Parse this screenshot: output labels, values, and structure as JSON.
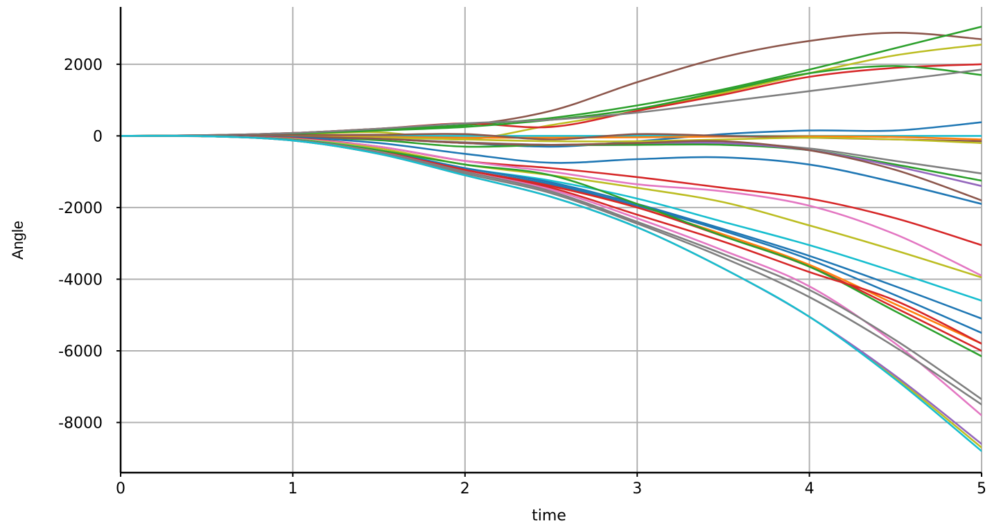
{
  "chart_data": {
    "type": "line",
    "title": "",
    "xlabel": "time",
    "ylabel": "Angle",
    "xlim": [
      0,
      5
    ],
    "ylim": [
      -9400,
      3600
    ],
    "xticks": [
      0,
      1,
      2,
      3,
      4,
      5
    ],
    "yticks": [
      -8000,
      -6000,
      -4000,
      -2000,
      0,
      2000
    ],
    "xtick_labels": [
      "0",
      "1",
      "2",
      "3",
      "4",
      "5"
    ],
    "ytick_labels": [
      "-8000",
      "-6000",
      "-4000",
      "-2000",
      "0",
      "2000"
    ],
    "grid": true,
    "legend": "none",
    "x": [
      0,
      0.5,
      1,
      1.5,
      2,
      2.5,
      3,
      3.5,
      4,
      4.5,
      5
    ],
    "series": [
      {
        "color": "#8c564b",
        "values": [
          0,
          20,
          80,
          200,
          300,
          700,
          1500,
          2200,
          2650,
          2880,
          2700
        ]
      },
      {
        "color": "#2ca02c",
        "values": [
          0,
          15,
          70,
          180,
          300,
          500,
          850,
          1300,
          1850,
          2450,
          3050
        ]
      },
      {
        "color": "#bcbd22",
        "values": [
          0,
          10,
          40,
          100,
          -100,
          300,
          700,
          1200,
          1750,
          2250,
          2550
        ]
      },
      {
        "color": "#d62728",
        "values": [
          0,
          20,
          80,
          200,
          350,
          250,
          700,
          1150,
          1650,
          1900,
          2000
        ]
      },
      {
        "color": "#2ca02c",
        "values": [
          0,
          15,
          60,
          150,
          250,
          450,
          750,
          1250,
          1750,
          1950,
          1700
        ]
      },
      {
        "color": "#7f7f7f",
        "values": [
          0,
          20,
          80,
          200,
          350,
          450,
          650,
          950,
          1250,
          1550,
          1850
        ]
      },
      {
        "color": "#1f77b4",
        "values": [
          0,
          0,
          -20,
          -80,
          -200,
          -300,
          -150,
          50,
          150,
          150,
          380
        ]
      },
      {
        "color": "#17becf",
        "values": [
          0,
          0,
          0,
          0,
          0,
          0,
          0,
          0,
          0,
          0,
          0
        ]
      },
      {
        "color": "#ff7f0e",
        "values": [
          0,
          0,
          -10,
          -30,
          -50,
          -50,
          -40,
          -20,
          -10,
          -30,
          -100
        ]
      },
      {
        "color": "#8c564b",
        "values": [
          0,
          5,
          20,
          30,
          50,
          -100,
          50,
          0,
          -50,
          -100,
          -150
        ]
      },
      {
        "color": "#bcbd22",
        "values": [
          0,
          0,
          -20,
          -50,
          -100,
          -150,
          -150,
          -100,
          -50,
          -100,
          -200
        ]
      },
      {
        "color": "#7f7f7f",
        "values": [
          0,
          -5,
          -30,
          -80,
          -180,
          -250,
          -250,
          -200,
          -350,
          -700,
          -1050
        ]
      },
      {
        "color": "#2ca02c",
        "values": [
          0,
          -5,
          -30,
          -120,
          -300,
          -250,
          -250,
          -250,
          -400,
          -800,
          -1250
        ]
      },
      {
        "color": "#9467bd",
        "values": [
          0,
          -5,
          -30,
          -80,
          -200,
          -250,
          -200,
          -200,
          -400,
          -850,
          -1400
        ]
      },
      {
        "color": "#8c564b",
        "values": [
          0,
          -5,
          -30,
          -80,
          -200,
          -250,
          -200,
          -150,
          -400,
          -950,
          -1800
        ]
      },
      {
        "color": "#1f77b4",
        "values": [
          0,
          -5,
          -40,
          -200,
          -500,
          -750,
          -650,
          -600,
          -800,
          -1300,
          -1900
        ]
      },
      {
        "color": "#d62728",
        "values": [
          0,
          -10,
          -60,
          -300,
          -700,
          -900,
          -1150,
          -1450,
          -1750,
          -2300,
          -3050
        ]
      },
      {
        "color": "#e377c2",
        "values": [
          0,
          -10,
          -80,
          -300,
          -700,
          -1000,
          -1350,
          -1550,
          -1950,
          -2750,
          -3900
        ]
      },
      {
        "color": "#bcbd22",
        "values": [
          0,
          -10,
          -90,
          -350,
          -800,
          -1100,
          -1450,
          -1850,
          -2500,
          -3200,
          -3950
        ]
      },
      {
        "color": "#17becf",
        "values": [
          0,
          -10,
          -100,
          -400,
          -900,
          -1250,
          -1750,
          -2400,
          -3050,
          -3800,
          -4600
        ]
      },
      {
        "color": "#1f77b4",
        "values": [
          0,
          -10,
          -110,
          -420,
          -900,
          -1300,
          -1900,
          -2600,
          -3350,
          -4200,
          -5100
        ]
      },
      {
        "color": "#1f77b4",
        "values": [
          0,
          -10,
          -110,
          -430,
          -950,
          -1350,
          -1950,
          -2650,
          -3450,
          -4450,
          -5500
        ]
      },
      {
        "color": "#ff7f0e",
        "values": [
          0,
          -10,
          -110,
          -440,
          -950,
          -1400,
          -2000,
          -2750,
          -3600,
          -4700,
          -5800
        ]
      },
      {
        "color": "#d62728",
        "values": [
          0,
          -10,
          -110,
          -430,
          -950,
          -1400,
          -2000,
          -2800,
          -3650,
          -4800,
          -6000
        ]
      },
      {
        "color": "#2ca02c",
        "values": [
          0,
          -10,
          -110,
          -400,
          -800,
          -1100,
          -1900,
          -2800,
          -3650,
          -4900,
          -6150
        ]
      },
      {
        "color": "#d62728",
        "values": [
          0,
          -10,
          -120,
          -450,
          -950,
          -1450,
          -2200,
          -2950,
          -3800,
          -4600,
          -5800
        ]
      },
      {
        "color": "#e377c2",
        "values": [
          0,
          -10,
          -120,
          -450,
          -1000,
          -1500,
          -2300,
          -3200,
          -4200,
          -5800,
          -7800
        ]
      },
      {
        "color": "#7f7f7f",
        "values": [
          0,
          -10,
          -120,
          -460,
          -1000,
          -1550,
          -2400,
          -3300,
          -4300,
          -5700,
          -7350
        ]
      },
      {
        "color": "#7f7f7f",
        "values": [
          0,
          -10,
          -130,
          -480,
          -1050,
          -1600,
          -2450,
          -3400,
          -4500,
          -5900,
          -7500
        ]
      },
      {
        "color": "#bcbd22",
        "values": [
          0,
          -10,
          -130,
          -500,
          -1100,
          -1700,
          -2550,
          -3700,
          -5050,
          -6750,
          -8700
        ]
      },
      {
        "color": "#9467bd",
        "values": [
          0,
          -10,
          -130,
          -500,
          -1100,
          -1700,
          -2550,
          -3700,
          -5050,
          -6700,
          -8600
        ]
      },
      {
        "color": "#17becf",
        "values": [
          0,
          -10,
          -130,
          -500,
          -1100,
          -1700,
          -2550,
          -3700,
          -5050,
          -6800,
          -8800
        ]
      }
    ]
  }
}
